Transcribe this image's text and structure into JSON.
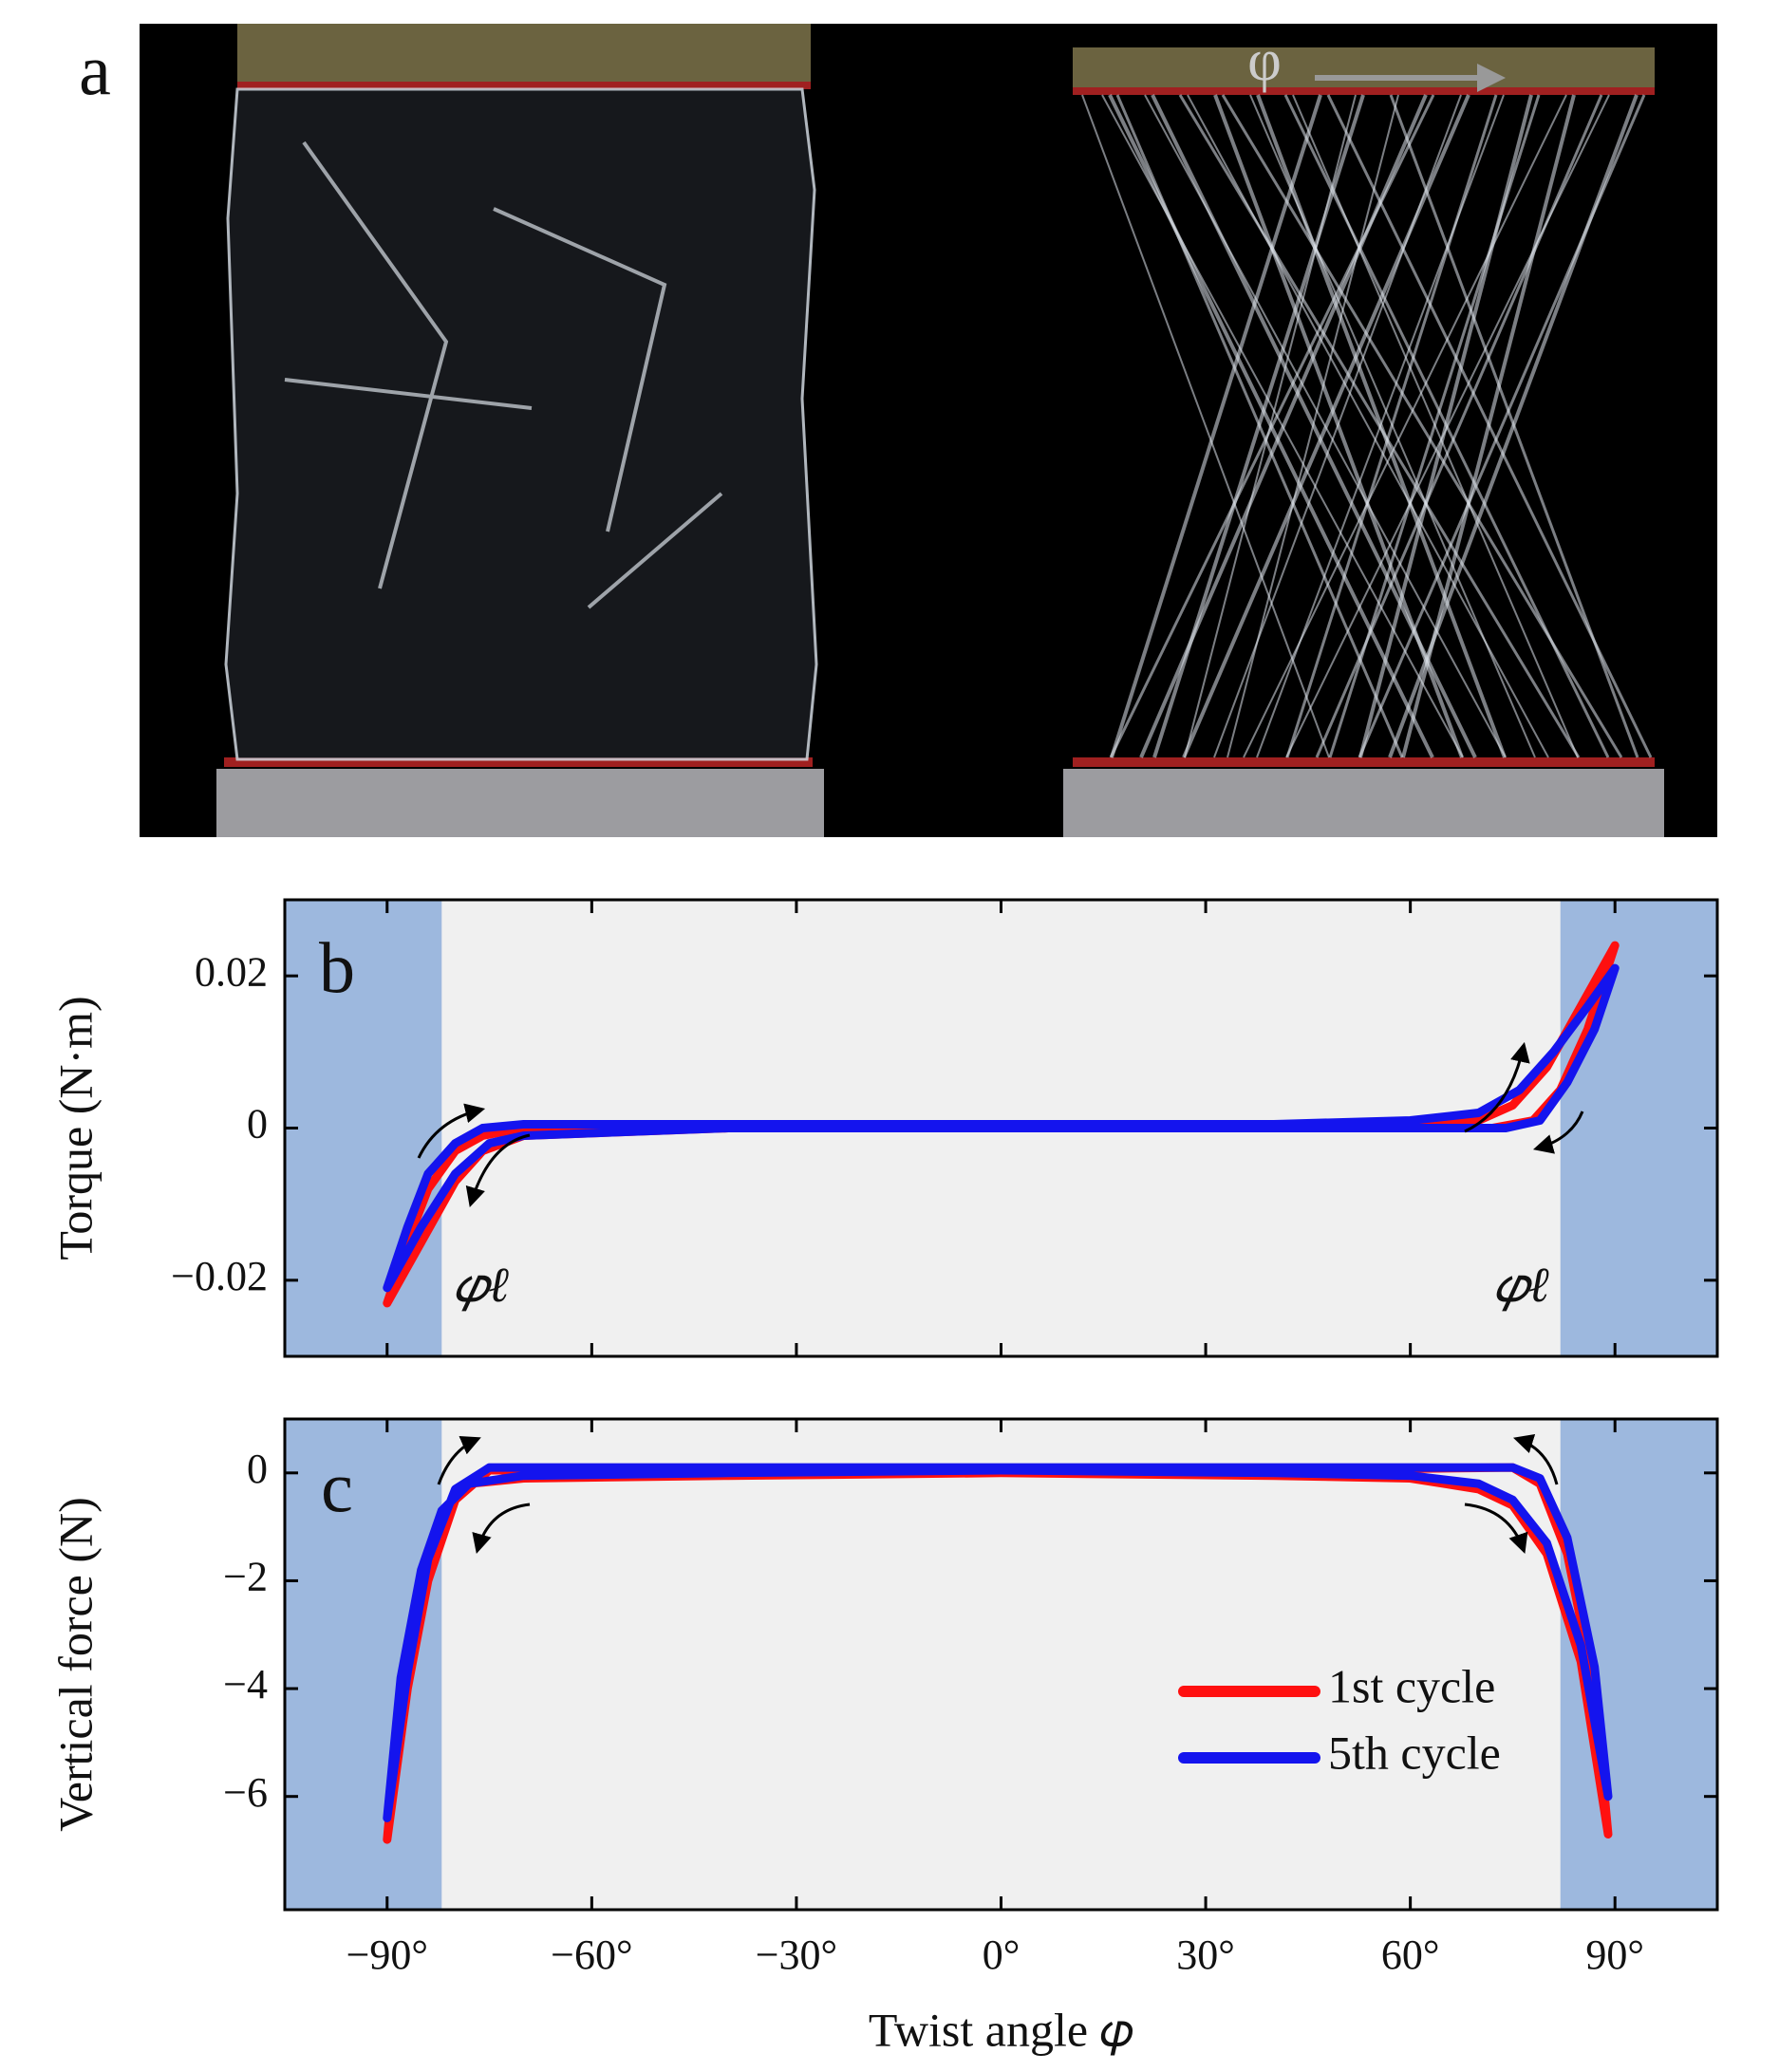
{
  "photo": {
    "panel": "a",
    "arrow_label": "φ"
  },
  "chart_data": [
    {
      "type": "line",
      "panel": "b",
      "ylabel": "Torque (N·m)",
      "xlim": [
        -105,
        105
      ],
      "ylim": [
        -0.03,
        0.03
      ],
      "xticks": [
        -90,
        -60,
        -30,
        0,
        30,
        60,
        90
      ],
      "yticks": [
        0.02,
        0,
        {
          "value": -0.02,
          "label": "−0.02"
        }
      ],
      "background": "#f0f0f0",
      "shaded_regions": [
        [
          -105,
          -82
        ],
        [
          82,
          105
        ]
      ],
      "shade_color": "#9db8de",
      "annotations": [
        "𝜑ℓ",
        "𝜑ℓ"
      ],
      "series": [
        {
          "color": "#ff1010",
          "x": [
            -90,
            -87,
            -84,
            -80,
            -76,
            -70,
            -40,
            0,
            40,
            60,
            70,
            75,
            80,
            85,
            90,
            86,
            82,
            78,
            72,
            40,
            0,
            -40,
            -70,
            -76,
            -80,
            -85,
            -90
          ],
          "y": [
            -0.023,
            -0.015,
            -0.008,
            -0.003,
            -0.001,
            0,
            0,
            0,
            0,
            0,
            0.001,
            0.003,
            0.008,
            0.016,
            0.024,
            0.013,
            0.005,
            0.001,
            0,
            0,
            0,
            0,
            -0.001,
            -0.003,
            -0.007,
            -0.015,
            -0.023
          ]
        },
        {
          "color": "#1414ee",
          "x": [
            -90,
            -87,
            -84,
            -80,
            -76,
            -70,
            -40,
            0,
            40,
            60,
            70,
            76,
            81,
            86,
            90,
            87,
            83,
            79,
            74,
            40,
            0,
            -40,
            -70,
            -75,
            -80,
            -85,
            -90
          ],
          "y": [
            -0.021,
            -0.013,
            -0.006,
            -0.002,
            0,
            0.0005,
            0.0005,
            0.0005,
            0.0005,
            0.001,
            0.002,
            0.005,
            0.01,
            0.016,
            0.021,
            0.013,
            0.006,
            0.001,
            0,
            0,
            0,
            0,
            -0.001,
            -0.002,
            -0.006,
            -0.013,
            -0.021
          ]
        }
      ]
    },
    {
      "type": "line",
      "panel": "c",
      "ylabel": "Vertical force (N)",
      "xlabel": "Twist angle 𝜑",
      "xlim": [
        -105,
        105
      ],
      "ylim": [
        -8.1,
        1
      ],
      "xticks": [
        {
          "value": -90,
          "label": "−90°"
        },
        {
          "value": -60,
          "label": "−60°"
        },
        {
          "value": -30,
          "label": "−30°"
        },
        {
          "value": 0,
          "label": "0°"
        },
        {
          "value": 30,
          "label": "30°"
        },
        {
          "value": 60,
          "label": "60°"
        },
        {
          "value": 90,
          "label": "90°"
        }
      ],
      "yticks": [
        0,
        {
          "value": -2,
          "label": "−2"
        },
        {
          "value": -4,
          "label": "−4"
        },
        {
          "value": -6,
          "label": "−6"
        }
      ],
      "background": "#f0f0f0",
      "shaded_regions": [
        [
          -105,
          -82
        ],
        [
          82,
          105
        ]
      ],
      "shade_color": "#9db8de",
      "legend": "lower right",
      "series": [
        {
          "name": "1st cycle",
          "color": "#ff1010",
          "x": [
            -90,
            -88,
            -85,
            -82,
            -78,
            -70,
            -40,
            0,
            40,
            60,
            70,
            75,
            80,
            85,
            89,
            87,
            83,
            79,
            75,
            40,
            0,
            -40,
            -75,
            -80,
            -84,
            -87,
            -90
          ],
          "y": [
            -6.8,
            -4,
            -2,
            -0.8,
            -0.2,
            -0.1,
            -0.05,
            0,
            -0.05,
            -0.1,
            -0.3,
            -0.6,
            -1.5,
            -3.5,
            -6.7,
            -4,
            -1.5,
            -0.2,
            0.1,
            0.05,
            0.05,
            0.05,
            0.05,
            -0.5,
            -2,
            -4,
            -6.8
          ]
        },
        {
          "name": "5th cycle",
          "color": "#1414ee",
          "x": [
            -90,
            -88,
            -85,
            -82,
            -78,
            -70,
            -40,
            0,
            40,
            60,
            70,
            75,
            80,
            85,
            89,
            87,
            83,
            79,
            75,
            40,
            0,
            -40,
            -75,
            -80,
            -84,
            -87,
            -90
          ],
          "y": [
            -6.4,
            -3.8,
            -1.8,
            -0.7,
            -0.2,
            -0.05,
            0,
            0.05,
            0,
            -0.05,
            -0.2,
            -0.5,
            -1.3,
            -3.2,
            -6,
            -3.6,
            -1.2,
            -0.1,
            0.1,
            0.1,
            0.1,
            0.1,
            0.1,
            -0.3,
            -1.6,
            -3.7,
            -6.4
          ]
        }
      ]
    }
  ]
}
